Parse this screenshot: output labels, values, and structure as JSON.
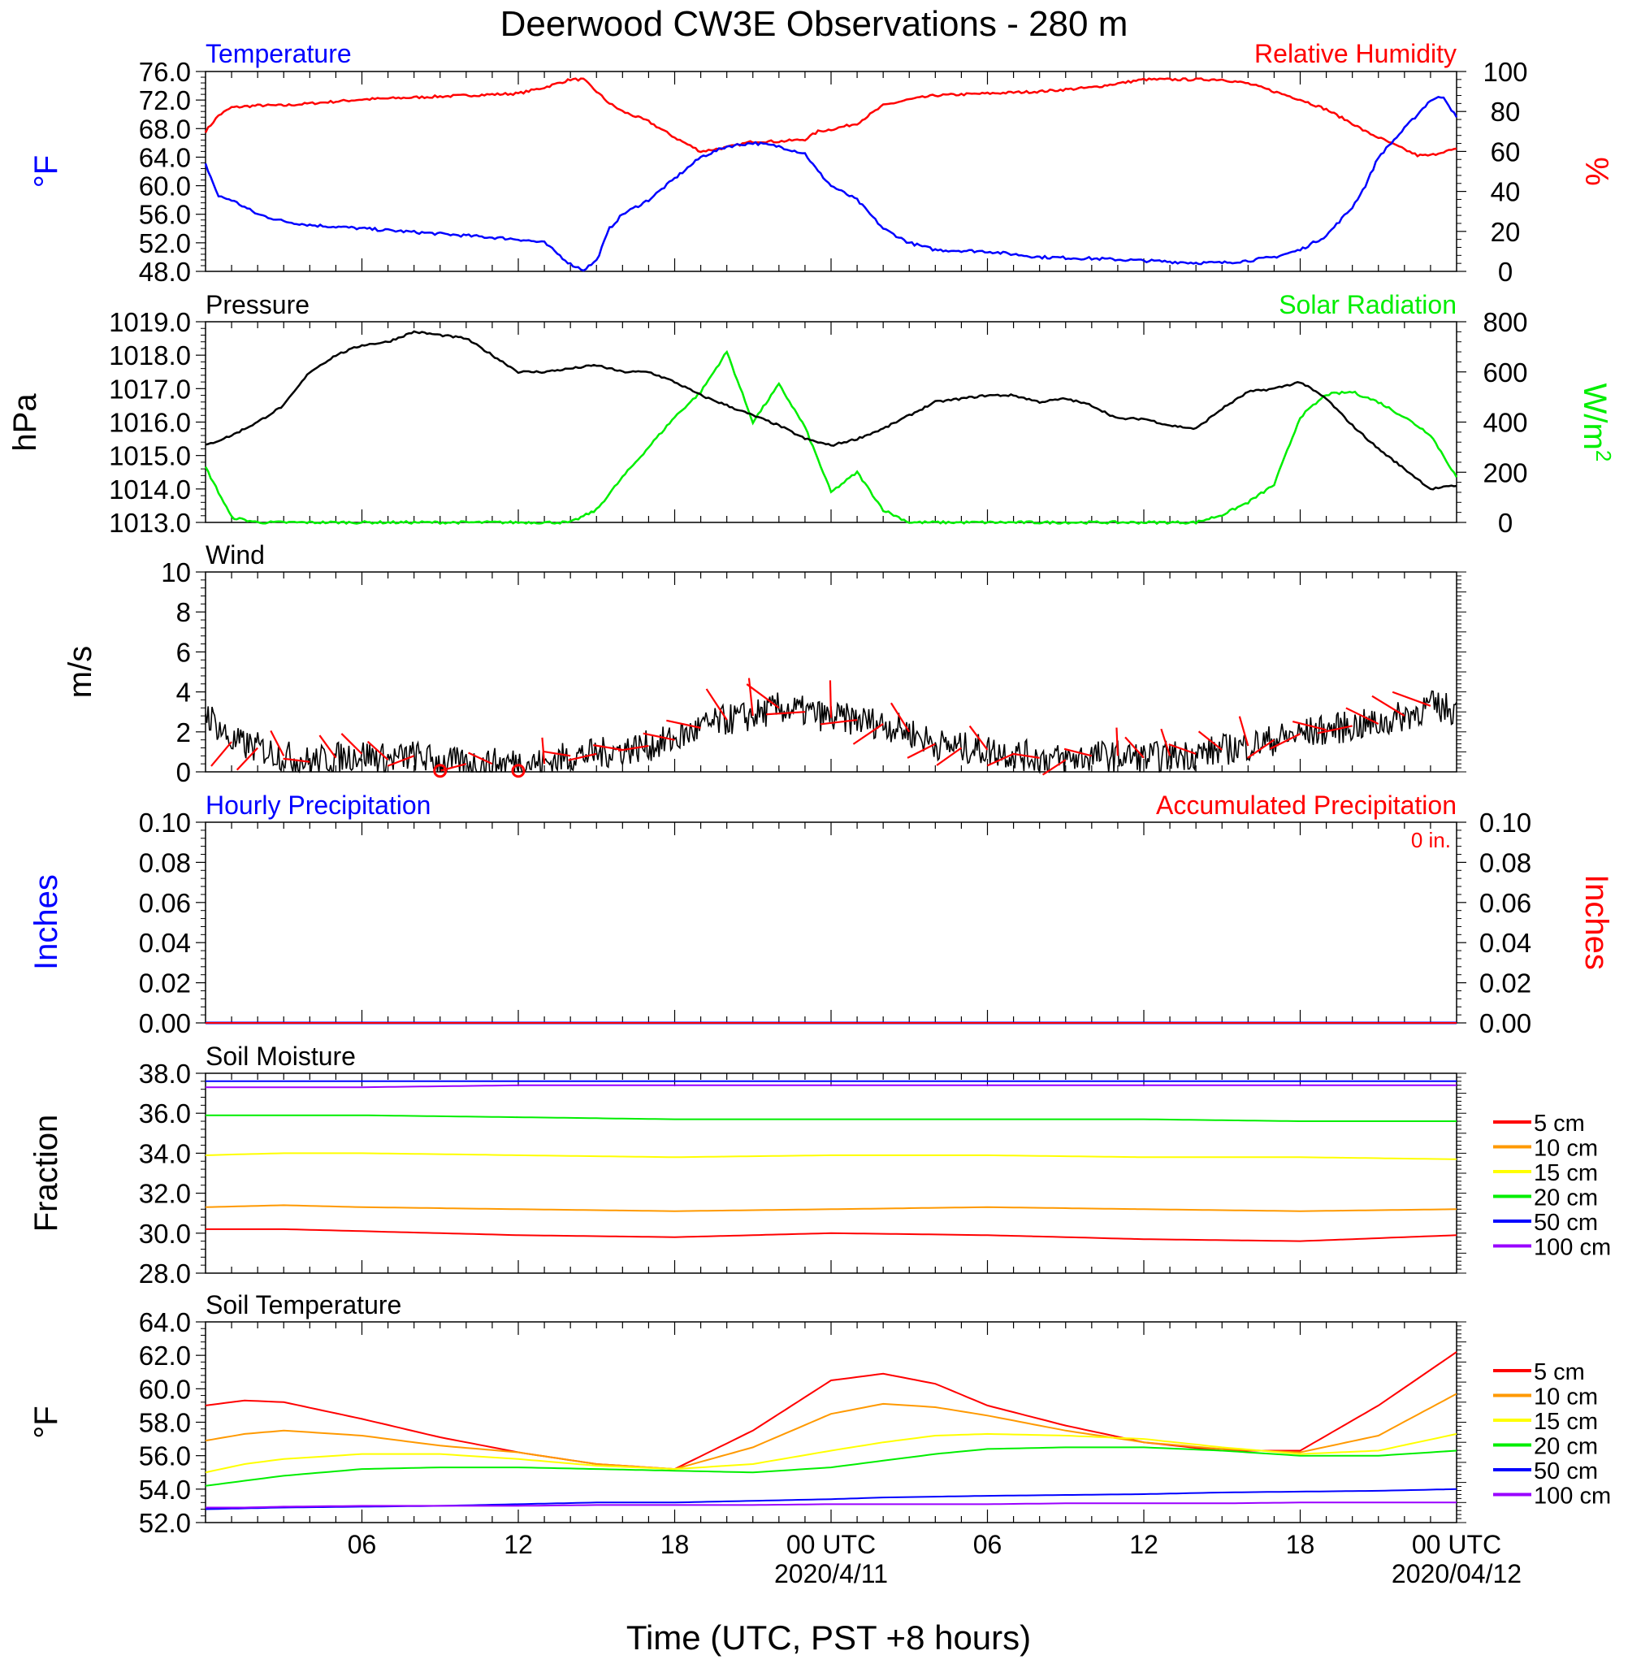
{
  "title": "Deerwood CW3E Observations - 280 m",
  "xlabel": "Time (UTC, PST +8 hours)",
  "x_ticks": [
    {
      "label": "06"
    },
    {
      "label": "12"
    },
    {
      "label": "18"
    },
    {
      "label": "00 UTC",
      "date": "2020/4/11"
    },
    {
      "label": "06"
    },
    {
      "label": "12"
    },
    {
      "label": "18"
    },
    {
      "label": "00 UTC",
      "date": "2020/04/12"
    }
  ],
  "colors": {
    "temperature": "#0000ff",
    "humidity": "#ff0000",
    "pressure": "#000000",
    "solar": "#00ee00",
    "wind": "#000000",
    "barb": "#ff0000",
    "d5": "#ff0000",
    "d10": "#ff9900",
    "d15": "#ffff00",
    "d20": "#00ee00",
    "d50": "#0000ff",
    "d100": "#9900ff"
  },
  "chart_data": [
    {
      "type": "line",
      "panel": "temperature_humidity",
      "left_title": "Temperature",
      "right_title": "Relative Humidity",
      "ylabel_left": "°F",
      "ylabel_right": "%",
      "ylim_left": [
        48,
        76
      ],
      "ylim_right": [
        0,
        100
      ],
      "yticks_left": [
        "76.0",
        "72.0",
        "68.0",
        "64.0",
        "60.0",
        "56.0",
        "52.0",
        "48.0"
      ],
      "yticks_right": [
        "100",
        "80",
        "60",
        "40",
        "20",
        "0"
      ],
      "x_hours": [
        0,
        0.5,
        1,
        2,
        3,
        4,
        6,
        8,
        10,
        12,
        13,
        14,
        14.5,
        15,
        15.5,
        16,
        17,
        18,
        19,
        20,
        21,
        22,
        23,
        23.5,
        24,
        25,
        26,
        27,
        28,
        30,
        32,
        34,
        36,
        38,
        39,
        40,
        41,
        42,
        43,
        44,
        44.5,
        45,
        46,
        46.5,
        47,
        47.5,
        48
      ],
      "series": [
        {
          "name": "Temperature",
          "axis": "left",
          "color_key": "temperature",
          "values": [
            63,
            58.5,
            58,
            56,
            55,
            54.5,
            54,
            53.5,
            53,
            52.5,
            52,
            49,
            48.2,
            49.5,
            54,
            56,
            58,
            61,
            64,
            65.5,
            66,
            65.5,
            64.5,
            62,
            60,
            58,
            54,
            52,
            51,
            50.8,
            50,
            49.8,
            49.5,
            49.2,
            49.2,
            49.5,
            50,
            51,
            53,
            57,
            60,
            64,
            68,
            70,
            72,
            72.5,
            69.5
          ]
        },
        {
          "name": "Relative Humidity",
          "axis": "right",
          "color_key": "humidity",
          "values": [
            70,
            78,
            82,
            83,
            83,
            84,
            86,
            87,
            88,
            89,
            92,
            96,
            96,
            90,
            84,
            80,
            75,
            67,
            60,
            62,
            65,
            65,
            66,
            70,
            71,
            74,
            83,
            86,
            88,
            89,
            90,
            92,
            96,
            96,
            96,
            94,
            90,
            86,
            81,
            74,
            70,
            67,
            61,
            58,
            58,
            60,
            61
          ]
        }
      ]
    },
    {
      "type": "line",
      "panel": "pressure_solar",
      "left_title": "Pressure",
      "right_title": "Solar Radiation",
      "ylabel_left": "hPa",
      "ylabel_right": "W/m2",
      "ylim_left": [
        1013,
        1019
      ],
      "ylim_right": [
        0,
        800
      ],
      "yticks_left": [
        "1019.0",
        "1018.0",
        "1017.0",
        "1016.0",
        "1015.0",
        "1014.0",
        "1013.0"
      ],
      "yticks_right": [
        "800",
        "600",
        "400",
        "200",
        "0"
      ],
      "x_hours": [
        0,
        1,
        2,
        3,
        4,
        5,
        6,
        7,
        8,
        9,
        10,
        11,
        12,
        13,
        14,
        15,
        16,
        17,
        18,
        19,
        20,
        21,
        22,
        23,
        24,
        25,
        26,
        27,
        28,
        29,
        30,
        31,
        32,
        33,
        34,
        35,
        36,
        37,
        38,
        39,
        40,
        41,
        42,
        43,
        44,
        45,
        46,
        47,
        48
      ],
      "series": [
        {
          "name": "Pressure",
          "axis": "left",
          "color_key": "pressure",
          "values": [
            1015.3,
            1015.6,
            1016,
            1016.5,
            1017.5,
            1018,
            1018.3,
            1018.4,
            1018.7,
            1018.6,
            1018.5,
            1018,
            1017.5,
            1017.5,
            1017.6,
            1017.7,
            1017.5,
            1017.5,
            1017.2,
            1016.8,
            1016.5,
            1016.2,
            1015.9,
            1015.5,
            1015.3,
            1015.5,
            1015.8,
            1016.2,
            1016.6,
            1016.7,
            1016.8,
            1016.8,
            1016.6,
            1016.7,
            1016.5,
            1016.1,
            1016.1,
            1015.9,
            1015.8,
            1016.4,
            1016.9,
            1017,
            1017.2,
            1016.7,
            1015.9,
            1015.2,
            1014.6,
            1014.0,
            1014.1
          ]
        },
        {
          "name": "Solar Radiation",
          "axis": "right",
          "color_key": "solar",
          "values": [
            220,
            20,
            0,
            0,
            0,
            0,
            0,
            0,
            0,
            0,
            0,
            0,
            0,
            0,
            0,
            50,
            180,
            300,
            420,
            520,
            680,
            400,
            550,
            380,
            120,
            200,
            50,
            0,
            0,
            0,
            0,
            0,
            0,
            0,
            0,
            0,
            0,
            0,
            0,
            30,
            80,
            150,
            420,
            510,
            520,
            480,
            420,
            350,
            180
          ]
        }
      ]
    },
    {
      "type": "line",
      "panel": "wind",
      "title": "Wind",
      "ylabel": "m/s",
      "ylim": [
        0,
        10
      ],
      "yticks": [
        "10",
        "8",
        "6",
        "4",
        "2",
        "0"
      ],
      "x_hours": [
        0,
        1,
        2,
        3,
        4,
        5,
        6,
        7,
        8,
        9,
        10,
        11,
        12,
        13,
        14,
        15,
        16,
        17,
        18,
        19,
        20,
        21,
        22,
        23,
        24,
        25,
        26,
        27,
        28,
        29,
        30,
        31,
        32,
        33,
        34,
        35,
        36,
        37,
        38,
        39,
        40,
        41,
        42,
        43,
        44,
        45,
        46,
        47,
        48
      ],
      "series": [
        {
          "name": "Wind",
          "color_key": "wind",
          "values": [
            3,
            1.5,
            1.2,
            0.8,
            0.5,
            0.7,
            0.9,
            0.6,
            0.8,
            0.5,
            0.4,
            0.4,
            0.5,
            0.4,
            0.8,
            0.9,
            1.1,
            1.3,
            1.6,
            2.2,
            2.6,
            2.8,
            3.2,
            3.0,
            2.7,
            2.6,
            2.4,
            2.0,
            1.4,
            1.2,
            1.1,
            0.9,
            0.7,
            0.6,
            0.8,
            0.8,
            0.7,
            0.8,
            0.9,
            1.1,
            1.3,
            1.6,
            1.9,
            2.1,
            2.3,
            2.4,
            2.8,
            3.3,
            3.1
          ]
        }
      ]
    },
    {
      "type": "line",
      "panel": "precipitation",
      "left_title": "Hourly Precipitation",
      "right_title": "Accumulated Precipitation",
      "annotation": "0 in.",
      "ylabel_left": "Inches",
      "ylabel_right": "Inches",
      "ylim_left": [
        0,
        0.1
      ],
      "ylim_right": [
        0,
        0.1
      ],
      "yticks_left": [
        "0.10",
        "0.08",
        "0.06",
        "0.04",
        "0.02",
        "0.00"
      ],
      "yticks_right": [
        "0.10",
        "0.08",
        "0.06",
        "0.04",
        "0.02",
        "0.00"
      ],
      "x_hours": [
        0,
        48
      ],
      "series": [
        {
          "name": "Hourly Precipitation",
          "color_key": "temperature",
          "values": [
            0,
            0
          ]
        },
        {
          "name": "Accumulated Precipitation",
          "color_key": "humidity",
          "values": [
            0,
            0
          ]
        }
      ]
    },
    {
      "type": "line",
      "panel": "soil_moisture",
      "title": "Soil Moisture",
      "ylabel": "Fraction",
      "ylim": [
        28,
        38
      ],
      "yticks": [
        "38.0",
        "36.0",
        "34.0",
        "32.0",
        "30.0",
        "28.0"
      ],
      "x_hours": [
        0,
        3,
        6,
        12,
        18,
        24,
        30,
        36,
        42,
        48
      ],
      "series": [
        {
          "name": "5 cm",
          "color_key": "d5",
          "values": [
            30.2,
            30.2,
            30.1,
            29.9,
            29.8,
            30.0,
            29.9,
            29.7,
            29.6,
            29.9
          ]
        },
        {
          "name": "10 cm",
          "color_key": "d10",
          "values": [
            31.3,
            31.4,
            31.3,
            31.2,
            31.1,
            31.2,
            31.3,
            31.2,
            31.1,
            31.2
          ]
        },
        {
          "name": "15 cm",
          "color_key": "d15",
          "values": [
            33.9,
            34.0,
            34.0,
            33.9,
            33.8,
            33.9,
            33.9,
            33.8,
            33.8,
            33.7
          ]
        },
        {
          "name": "20 cm",
          "color_key": "d20",
          "values": [
            35.9,
            35.9,
            35.9,
            35.8,
            35.7,
            35.7,
            35.7,
            35.7,
            35.6,
            35.6
          ]
        },
        {
          "name": "50 cm",
          "color_key": "d50",
          "values": [
            37.6,
            37.6,
            37.6,
            37.6,
            37.6,
            37.6,
            37.6,
            37.6,
            37.6,
            37.6
          ]
        },
        {
          "name": "100 cm",
          "color_key": "d100",
          "values": [
            37.3,
            37.3,
            37.3,
            37.4,
            37.4,
            37.4,
            37.4,
            37.4,
            37.4,
            37.4
          ]
        }
      ],
      "legend": [
        "5 cm",
        "10 cm",
        "15 cm",
        "20 cm",
        "50 cm",
        "100 cm"
      ]
    },
    {
      "type": "line",
      "panel": "soil_temperature",
      "title": "Soil Temperature",
      "ylabel": "°F",
      "ylim": [
        52,
        64
      ],
      "yticks": [
        "64.0",
        "62.0",
        "60.0",
        "58.0",
        "56.0",
        "54.0",
        "52.0"
      ],
      "x_hours": [
        0,
        1.5,
        3,
        6,
        9,
        12,
        15,
        18,
        21,
        24,
        26,
        28,
        30,
        33,
        36,
        39,
        42,
        45,
        48
      ],
      "series": [
        {
          "name": "5 cm",
          "color_key": "d5",
          "values": [
            59,
            59.3,
            59.2,
            58.2,
            57.1,
            56.2,
            55.5,
            55.2,
            57.5,
            60.5,
            60.9,
            60.3,
            59,
            57.8,
            56.8,
            56.3,
            56.3,
            59,
            62.2
          ]
        },
        {
          "name": "10 cm",
          "color_key": "d10",
          "values": [
            56.9,
            57.3,
            57.5,
            57.2,
            56.6,
            56.2,
            55.5,
            55.2,
            56.5,
            58.5,
            59.1,
            58.9,
            58.4,
            57.5,
            56.8,
            56.4,
            56.2,
            57.2,
            59.7
          ]
        },
        {
          "name": "15 cm",
          "color_key": "d15",
          "values": [
            55,
            55.5,
            55.8,
            56.1,
            56.1,
            55.8,
            55.4,
            55.2,
            55.5,
            56.3,
            56.8,
            57.2,
            57.3,
            57.2,
            57,
            56.5,
            56.1,
            56.3,
            57.3
          ]
        },
        {
          "name": "20 cm",
          "color_key": "d20",
          "values": [
            54.2,
            54.5,
            54.8,
            55.2,
            55.3,
            55.3,
            55.2,
            55.1,
            55,
            55.3,
            55.7,
            56.1,
            56.4,
            56.5,
            56.5,
            56.3,
            56,
            56,
            56.3
          ]
        },
        {
          "name": "50 cm",
          "color_key": "d50",
          "values": [
            52.8,
            52.85,
            52.9,
            52.95,
            53,
            53.1,
            53.2,
            53.2,
            53.3,
            53.4,
            53.5,
            53.55,
            53.6,
            53.65,
            53.7,
            53.8,
            53.85,
            53.9,
            54
          ]
        },
        {
          "name": "100 cm",
          "color_key": "d100",
          "values": [
            52.9,
            52.9,
            52.95,
            53,
            53,
            53,
            53.05,
            53.05,
            53.05,
            53.1,
            53.1,
            53.1,
            53.1,
            53.15,
            53.15,
            53.15,
            53.2,
            53.2,
            53.2
          ]
        }
      ],
      "legend": [
        "5 cm",
        "10 cm",
        "15 cm",
        "20 cm",
        "50 cm",
        "100 cm"
      ]
    }
  ]
}
